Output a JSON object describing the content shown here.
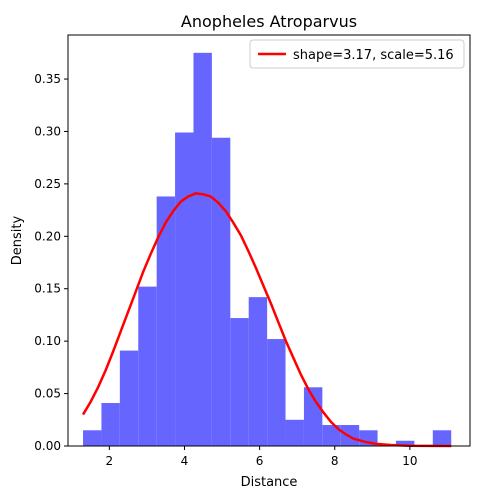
{
  "chart_data": {
    "type": "histogram",
    "title": "Anopheles Atroparvus",
    "xlabel": "Distance",
    "ylabel": "Density",
    "xlim": [
      0.9,
      11.6
    ],
    "ylim": [
      0,
      0.392
    ],
    "x_ticks": [
      2,
      4,
      6,
      8,
      10
    ],
    "x_tick_labels": [
      "2",
      "4",
      "6",
      "8",
      "10"
    ],
    "y_ticks": [
      0.0,
      0.05,
      0.1,
      0.15,
      0.2,
      0.25,
      0.3,
      0.35
    ],
    "y_tick_labels": [
      "0.00",
      "0.05",
      "0.10",
      "0.15",
      "0.20",
      "0.25",
      "0.30",
      "0.35"
    ],
    "bars": {
      "color": "#6666ff",
      "bins": [
        {
          "start": 1.3,
          "end": 1.79,
          "density": 0.015
        },
        {
          "start": 1.79,
          "end": 2.28,
          "density": 0.041
        },
        {
          "start": 2.28,
          "end": 2.77,
          "density": 0.091
        },
        {
          "start": 2.77,
          "end": 3.26,
          "density": 0.152
        },
        {
          "start": 3.26,
          "end": 3.75,
          "density": 0.238
        },
        {
          "start": 3.75,
          "end": 4.24,
          "density": 0.299
        },
        {
          "start": 4.24,
          "end": 4.73,
          "density": 0.375
        },
        {
          "start": 4.73,
          "end": 5.22,
          "density": 0.294
        },
        {
          "start": 5.22,
          "end": 5.71,
          "density": 0.122
        },
        {
          "start": 5.71,
          "end": 6.2,
          "density": 0.142
        },
        {
          "start": 6.2,
          "end": 6.69,
          "density": 0.102
        },
        {
          "start": 6.69,
          "end": 7.18,
          "density": 0.025
        },
        {
          "start": 7.18,
          "end": 7.67,
          "density": 0.056
        },
        {
          "start": 7.67,
          "end": 8.16,
          "density": 0.02
        },
        {
          "start": 8.16,
          "end": 8.65,
          "density": 0.02
        },
        {
          "start": 8.65,
          "end": 9.14,
          "density": 0.015
        },
        {
          "start": 9.14,
          "end": 9.63,
          "density": 0.0
        },
        {
          "start": 9.63,
          "end": 10.12,
          "density": 0.005
        },
        {
          "start": 10.12,
          "end": 10.61,
          "density": 0.0
        },
        {
          "start": 10.61,
          "end": 11.1,
          "density": 0.015
        }
      ]
    },
    "curve": {
      "name": "shape=3.17, scale=5.16",
      "color": "#ff0000",
      "points": [
        [
          1.3,
          0.03
        ],
        [
          1.5,
          0.042
        ],
        [
          1.7,
          0.056
        ],
        [
          1.9,
          0.072
        ],
        [
          2.1,
          0.09
        ],
        [
          2.3,
          0.109
        ],
        [
          2.5,
          0.128
        ],
        [
          2.7,
          0.147
        ],
        [
          2.9,
          0.166
        ],
        [
          3.1,
          0.183
        ],
        [
          3.3,
          0.199
        ],
        [
          3.5,
          0.213
        ],
        [
          3.7,
          0.224
        ],
        [
          3.9,
          0.233
        ],
        [
          4.1,
          0.238
        ],
        [
          4.3,
          0.241
        ],
        [
          4.5,
          0.24
        ],
        [
          4.7,
          0.238
        ],
        [
          4.9,
          0.232
        ],
        [
          5.1,
          0.224
        ],
        [
          5.3,
          0.213
        ],
        [
          5.5,
          0.201
        ],
        [
          5.7,
          0.186
        ],
        [
          5.9,
          0.17
        ],
        [
          6.1,
          0.153
        ],
        [
          6.3,
          0.136
        ],
        [
          6.5,
          0.118
        ],
        [
          6.7,
          0.1
        ],
        [
          6.9,
          0.084
        ],
        [
          7.1,
          0.068
        ],
        [
          7.3,
          0.054
        ],
        [
          7.5,
          0.042
        ],
        [
          7.7,
          0.032
        ],
        [
          7.9,
          0.023
        ],
        [
          8.1,
          0.016
        ],
        [
          8.3,
          0.011
        ],
        [
          8.5,
          0.007
        ],
        [
          8.8,
          0.004
        ],
        [
          9.1,
          0.002
        ],
        [
          9.5,
          0.001
        ],
        [
          10.0,
          0.0003
        ],
        [
          10.5,
          0.0001
        ],
        [
          11.1,
          0.0
        ]
      ]
    },
    "legend": {
      "placement": "top-right",
      "entries": [
        "shape=3.17, scale=5.16"
      ]
    },
    "grid": false
  }
}
